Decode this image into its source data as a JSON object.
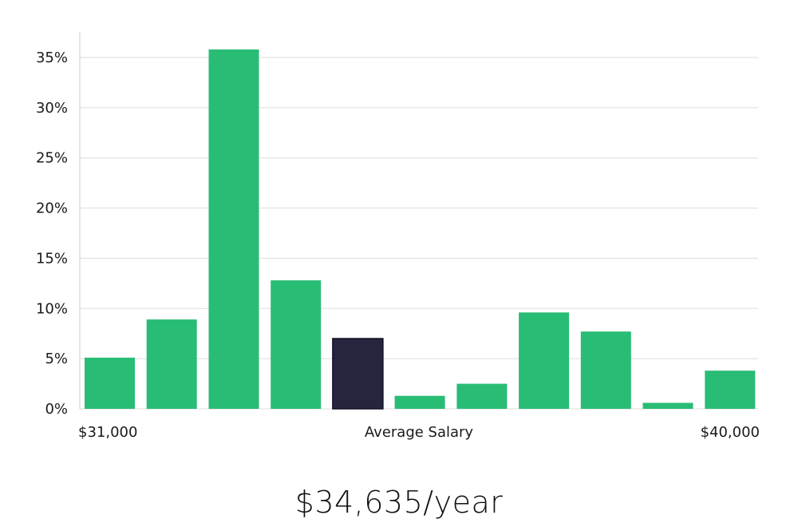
{
  "chart_data": {
    "type": "bar",
    "values": [
      5.1,
      8.9,
      35.8,
      12.8,
      7.0,
      1.3,
      2.5,
      9.6,
      7.7,
      0.6,
      3.8
    ],
    "highlight_index": 4,
    "x_labels": {
      "left": "$31,000",
      "center": "Average Salary",
      "right": "$40,000"
    },
    "y_ticks": [
      0,
      5,
      10,
      15,
      20,
      25,
      30,
      35
    ],
    "y_tick_labels": [
      "0%",
      "5%",
      "10%",
      "15%",
      "20%",
      "25%",
      "30%",
      "35%"
    ],
    "ylim": [
      0,
      37.5
    ],
    "grid": true,
    "colors": {
      "bar": "#29bc75",
      "highlight": "#26243f",
      "grid": "#dddddd",
      "axis": "#cccccc"
    }
  },
  "salary": {
    "label": "$34,635/year"
  }
}
